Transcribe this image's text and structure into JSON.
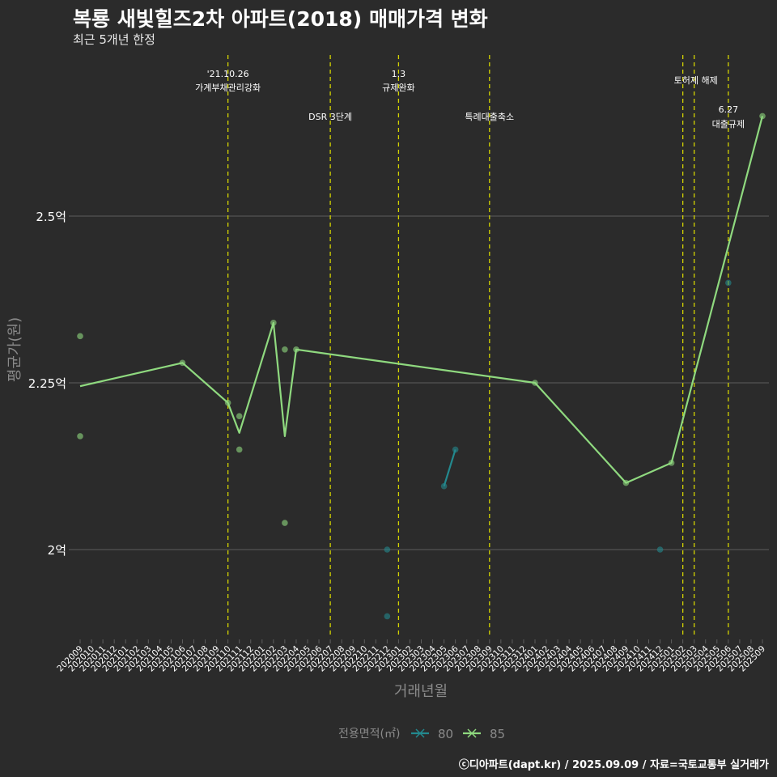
{
  "title": "복룡 새빛힐즈2차 아파트(2018) 매매가격 변화",
  "subtitle": "최근 5개년 한정",
  "caption": "ⓒ디아파트(dapt.kr) / 2025.09.09 / 자료=국토교통부 실거래가",
  "colors": {
    "background": "#2b2b2b",
    "grid": "#5e5e5e",
    "event_line": "#d4d400",
    "series_80": "#23898e",
    "series_85": "#8fd97f",
    "text": "#ffffff",
    "axis_title": "#8a8a8a"
  },
  "chart_data": {
    "type": "line",
    "title": "복룡 새빛힐즈2차 아파트(2018) 매매가격 변화",
    "subtitle": "최근 5개년 한정",
    "xlabel": "거래년월",
    "ylabel": "평균가(원)",
    "categories": [
      "202009",
      "202010",
      "202011",
      "202012",
      "202101",
      "202102",
      "202103",
      "202104",
      "202105",
      "202106",
      "202107",
      "202108",
      "202109",
      "202110",
      "202111",
      "202112",
      "202201",
      "202202",
      "202203",
      "202204",
      "202205",
      "202206",
      "202207",
      "202208",
      "202209",
      "202210",
      "202211",
      "202212",
      "202301",
      "202302",
      "202303",
      "202304",
      "202305",
      "202306",
      "202307",
      "202308",
      "202309",
      "202310",
      "202311",
      "202312",
      "202401",
      "202402",
      "202403",
      "202404",
      "202405",
      "202406",
      "202407",
      "202408",
      "202409",
      "202410",
      "202411",
      "202412",
      "202501",
      "202502",
      "202503",
      "202504",
      "202505",
      "202506",
      "202507",
      "202508",
      "202509"
    ],
    "y_ticks": [
      {
        "value": 2.0,
        "label": "2억"
      },
      {
        "value": 2.25,
        "label": "2.25억"
      },
      {
        "value": 2.5,
        "label": "2.5억"
      }
    ],
    "ylim": [
      1.87,
      2.76
    ],
    "legend": {
      "title": "전용면적(㎡)",
      "position": "bottom"
    },
    "series": [
      {
        "name": "80",
        "line": [
          {
            "x": "202305",
            "y": 2.095
          },
          {
            "x": "202306",
            "y": 2.15
          }
        ],
        "points": [
          {
            "x": "202212",
            "y": 2.0
          },
          {
            "x": "202212",
            "y": 1.9
          },
          {
            "x": "202305",
            "y": 2.095
          },
          {
            "x": "202306",
            "y": 2.15
          },
          {
            "x": "202412",
            "y": 2.0
          },
          {
            "x": "202506",
            "y": 2.4
          }
        ]
      },
      {
        "name": "85",
        "line": [
          {
            "x": "202009",
            "y": 2.245
          },
          {
            "x": "202106",
            "y": 2.28
          },
          {
            "x": "202110",
            "y": 2.22
          },
          {
            "x": "202111",
            "y": 2.175
          },
          {
            "x": "202202",
            "y": 2.34
          },
          {
            "x": "202203",
            "y": 2.17
          },
          {
            "x": "202204",
            "y": 2.3
          },
          {
            "x": "202401",
            "y": 2.25
          },
          {
            "x": "202409",
            "y": 2.1
          },
          {
            "x": "202501",
            "y": 2.13
          },
          {
            "x": "202509",
            "y": 2.65
          }
        ],
        "points": [
          {
            "x": "202009",
            "y": 2.32
          },
          {
            "x": "202009",
            "y": 2.17
          },
          {
            "x": "202106",
            "y": 2.28
          },
          {
            "x": "202110",
            "y": 2.22
          },
          {
            "x": "202111",
            "y": 2.2
          },
          {
            "x": "202111",
            "y": 2.15
          },
          {
            "x": "202202",
            "y": 2.34
          },
          {
            "x": "202203",
            "y": 2.3
          },
          {
            "x": "202203",
            "y": 2.04
          },
          {
            "x": "202204",
            "y": 2.3
          },
          {
            "x": "202401",
            "y": 2.25
          },
          {
            "x": "202409",
            "y": 2.1
          },
          {
            "x": "202501",
            "y": 2.13
          },
          {
            "x": "202509",
            "y": 2.65
          }
        ]
      }
    ],
    "events": [
      {
        "x": "202110",
        "date": "'21.10.26",
        "label": "가계부채관리강화",
        "tier": 1
      },
      {
        "x": "202207",
        "date": "",
        "label": "DSR 3단계",
        "tier": 2
      },
      {
        "x": "202301",
        "date": "1.3",
        "label": "규제완화",
        "tier": 1
      },
      {
        "x": "202309",
        "date": "",
        "label": "특례대출축소",
        "tier": 2
      },
      {
        "x": "202502",
        "date": "",
        "label": "",
        "tier": 0
      },
      {
        "x": "202503",
        "date": "",
        "label": "토허제 해제",
        "tier": 1
      },
      {
        "x": "202506",
        "date": "6.27",
        "label": "대출규제",
        "tier": 2
      }
    ]
  }
}
